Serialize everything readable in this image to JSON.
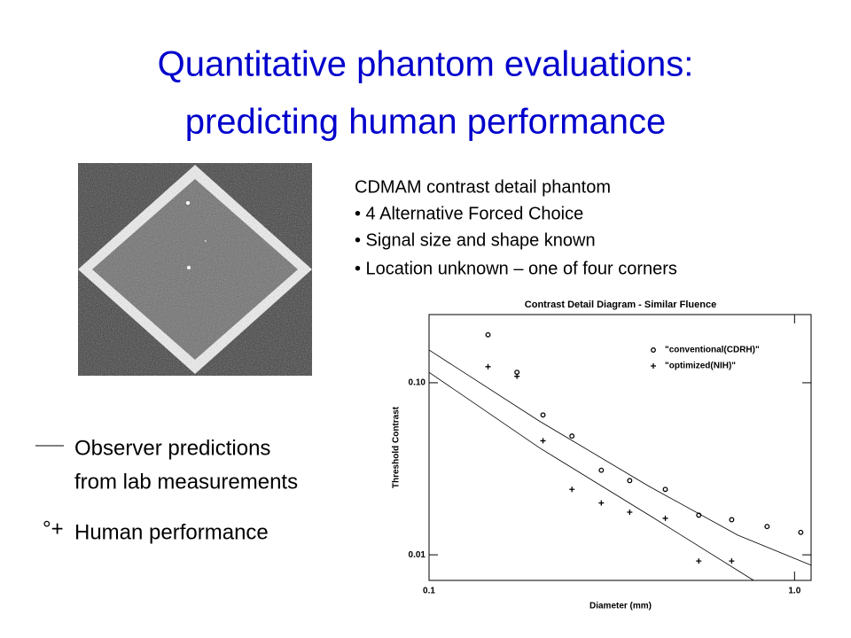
{
  "title": [
    "Quantitative phantom evaluations:",
    "predicting human performance"
  ],
  "description": {
    "heading": "CDMAM contrast detail phantom",
    "bullets": [
      "• 4 Alternative Forced Choice",
      "• Signal size and shape known",
      "• Location unknown – one of four corners"
    ]
  },
  "key": {
    "line_text": [
      "Observer predictions",
      "from lab measurements"
    ],
    "marker_symbol": "°+",
    "marker_text": "Human performance"
  },
  "chart_data": {
    "type": "scatter",
    "title": "Contrast Detail Diagram - Similar Fluence",
    "x_label": "Diameter (mm)",
    "y_label": "Threshold Contrast",
    "xlog": true,
    "ylog": true,
    "legend": "top-right",
    "xlim": [
      0.1,
      1.11
    ],
    "ylim": [
      0.0071,
      0.249
    ],
    "xticks": [
      0.1,
      {
        "value": 1,
        "label": "1.0"
      }
    ],
    "yticks": [
      {
        "value": 0.1,
        "label": "0.10"
      },
      0.01
    ],
    "series": [
      {
        "name": "\"conventional(CDRH)\"",
        "marker": "o",
        "color": "#000000",
        "x": [
          0.145,
          0.174,
          0.205,
          0.246,
          0.296,
          0.354,
          0.443,
          0.547,
          0.673,
          0.841,
          1.04
        ],
        "values": [
          0.19,
          0.115,
          0.065,
          0.049,
          0.031,
          0.027,
          0.024,
          0.017,
          0.016,
          0.0146,
          0.0135
        ]
      },
      {
        "name": "\"optimized(NIH)\"",
        "marker": "+",
        "color": "#000000",
        "x": [
          0.145,
          0.174,
          0.205,
          0.246,
          0.296,
          0.354,
          0.443,
          0.547,
          0.673
        ],
        "values": [
          0.124,
          0.109,
          0.046,
          0.024,
          0.02,
          0.0177,
          0.0163,
          0.0092,
          0.0092
        ]
      },
      {
        "marker": "line",
        "color": "#000000",
        "x": [
          0.1,
          0.2,
          0.4,
          0.7,
          1.11
        ],
        "values": [
          0.155,
          0.06,
          0.025,
          0.013,
          0.0087
        ]
      },
      {
        "marker": "line",
        "color": "#000000",
        "x": [
          0.1,
          0.2,
          0.4,
          0.773
        ],
        "values": [
          0.115,
          0.042,
          0.017,
          0.0071
        ]
      }
    ]
  }
}
